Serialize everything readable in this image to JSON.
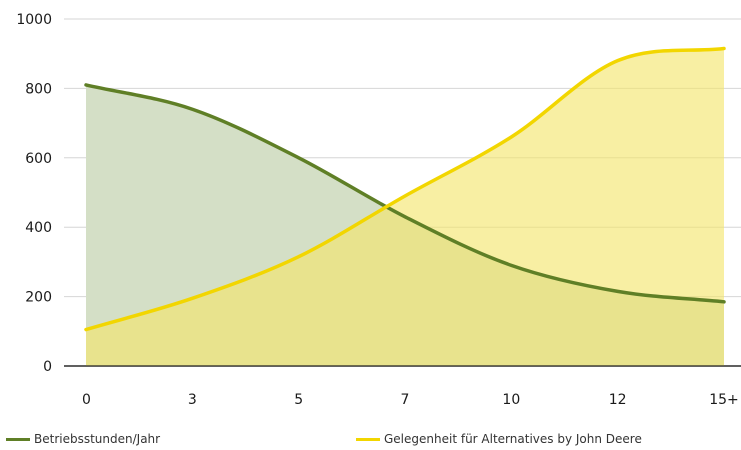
{
  "chart_data": {
    "type": "area",
    "x": [
      "0",
      "3",
      "5",
      "7",
      "10",
      "12",
      "15+"
    ],
    "ylim": [
      0,
      1000
    ],
    "y_ticks": [
      "0",
      "200",
      "400",
      "600",
      "800",
      "1000"
    ],
    "grid": true,
    "legend_position": "bottom",
    "series": [
      {
        "name": "Betriebsstunden/Jahr",
        "color": "#5f7f26",
        "fill": "#d4dfc6",
        "values": [
          810,
          740,
          600,
          430,
          290,
          215,
          185
        ]
      },
      {
        "name": "Gelegenheit für Alternatives by John Deere",
        "color": "#f2d600",
        "fill": "#f8f1b8",
        "values": [
          105,
          195,
          315,
          490,
          660,
          880,
          915
        ]
      }
    ]
  }
}
